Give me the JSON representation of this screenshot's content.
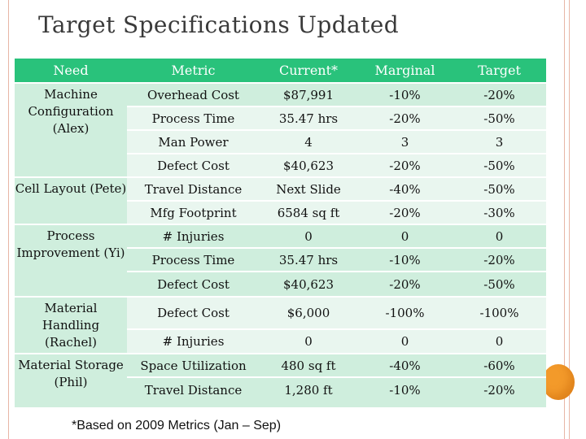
{
  "title": "Target Specifications Updated",
  "table": {
    "headers": [
      "Need",
      "Metric",
      "Current*",
      "Marginal",
      "Target"
    ],
    "groups": [
      {
        "need": "Machine Configuration (Alex)",
        "rows": [
          {
            "metric": "Overhead Cost",
            "current": "$87,991",
            "marginal": "-10%",
            "target": "-20%"
          },
          {
            "metric": "Process Time",
            "current": "35.47 hrs",
            "marginal": "-20%",
            "target": "-50%"
          },
          {
            "metric": "Man Power",
            "current": "4",
            "marginal": "3",
            "target": "3"
          },
          {
            "metric": "Defect Cost",
            "current": "$40,623",
            "marginal": "-20%",
            "target": "-50%"
          }
        ]
      },
      {
        "need": "Cell Layout (Pete)",
        "rows": [
          {
            "metric": "Travel Distance",
            "current": "Next Slide",
            "marginal": "-40%",
            "target": "-50%"
          },
          {
            "metric": "Mfg Footprint",
            "current": "6584 sq ft",
            "marginal": "-20%",
            "target": "-30%"
          }
        ]
      },
      {
        "need": "Process Improvement (Yi)",
        "rows": [
          {
            "metric": "# Injuries",
            "current": "0",
            "marginal": "0",
            "target": "0"
          },
          {
            "metric": "Process Time",
            "current": "35.47 hrs",
            "marginal": "-10%",
            "target": "-20%"
          },
          {
            "metric": "Defect Cost",
            "current": "$40,623",
            "marginal": "-20%",
            "target": "-50%"
          }
        ]
      },
      {
        "need": "Material Handling (Rachel)",
        "rows": [
          {
            "metric": "Defect Cost",
            "current": "$6,000",
            "marginal": "-100%",
            "target": "-100%"
          },
          {
            "metric": "# Injuries",
            "current": "0",
            "marginal": "0",
            "target": "0"
          }
        ]
      },
      {
        "need": "Material Storage (Phil)",
        "rows": [
          {
            "metric": "Space Utilization",
            "current": "480 sq ft",
            "marginal": "-40%",
            "target": "-60%"
          },
          {
            "metric": "Travel Distance",
            "current": "1,280 ft",
            "marginal": "-10%",
            "target": "-20%"
          }
        ]
      }
    ]
  },
  "footnote": "*Based on 2009 Metrics (Jan – Sep)",
  "colors": {
    "header": "#29c27b",
    "row_dark": "#cfeedd",
    "row_light": "#e9f6ef",
    "accent_orb": "#f39a2a",
    "frame": "#e8b6a6"
  }
}
